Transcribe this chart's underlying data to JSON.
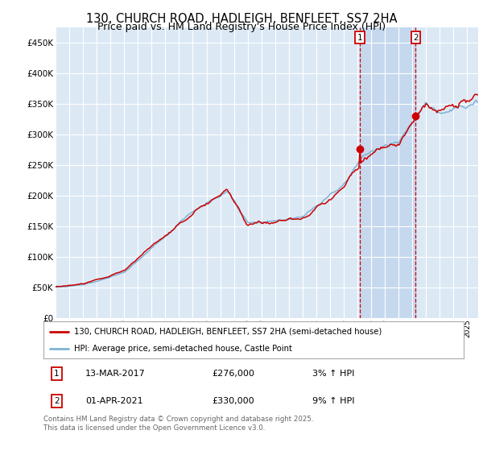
{
  "title": "130, CHURCH ROAD, HADLEIGH, BENFLEET, SS7 2HA",
  "subtitle": "Price paid vs. HM Land Registry's House Price Index (HPI)",
  "legend_line1": "130, CHURCH ROAD, HADLEIGH, BENFLEET, SS7 2HA (semi-detached house)",
  "legend_line2": "HPI: Average price, semi-detached house, Castle Point",
  "annotation1_date": "13-MAR-2017",
  "annotation1_price": "£276,000",
  "annotation1_hpi": "3% ↑ HPI",
  "annotation2_date": "01-APR-2021",
  "annotation2_price": "£330,000",
  "annotation2_hpi": "9% ↑ HPI",
  "footer": "Contains HM Land Registry data © Crown copyright and database right 2025.\nThis data is licensed under the Open Government Licence v3.0.",
  "line_color_price": "#cc0000",
  "line_color_hpi": "#7fb3d3",
  "background_chart": "#dce9f5",
  "background_shaded": "#c5d8ee",
  "grid_color": "#ffffff",
  "annotation_box_color": "#cc0000",
  "vline_color": "#cc0000",
  "dot_color": "#cc0000",
  "ylim": [
    0,
    475000
  ],
  "yticks": [
    0,
    50000,
    100000,
    150000,
    200000,
    250000,
    300000,
    350000,
    400000,
    450000
  ],
  "xlim_start": 1995.0,
  "xlim_end": 2025.8,
  "purchase_year_1": 2017.2,
  "purchase_price_1": 276000,
  "purchase_year_2": 2021.25,
  "purchase_price_2": 330000
}
